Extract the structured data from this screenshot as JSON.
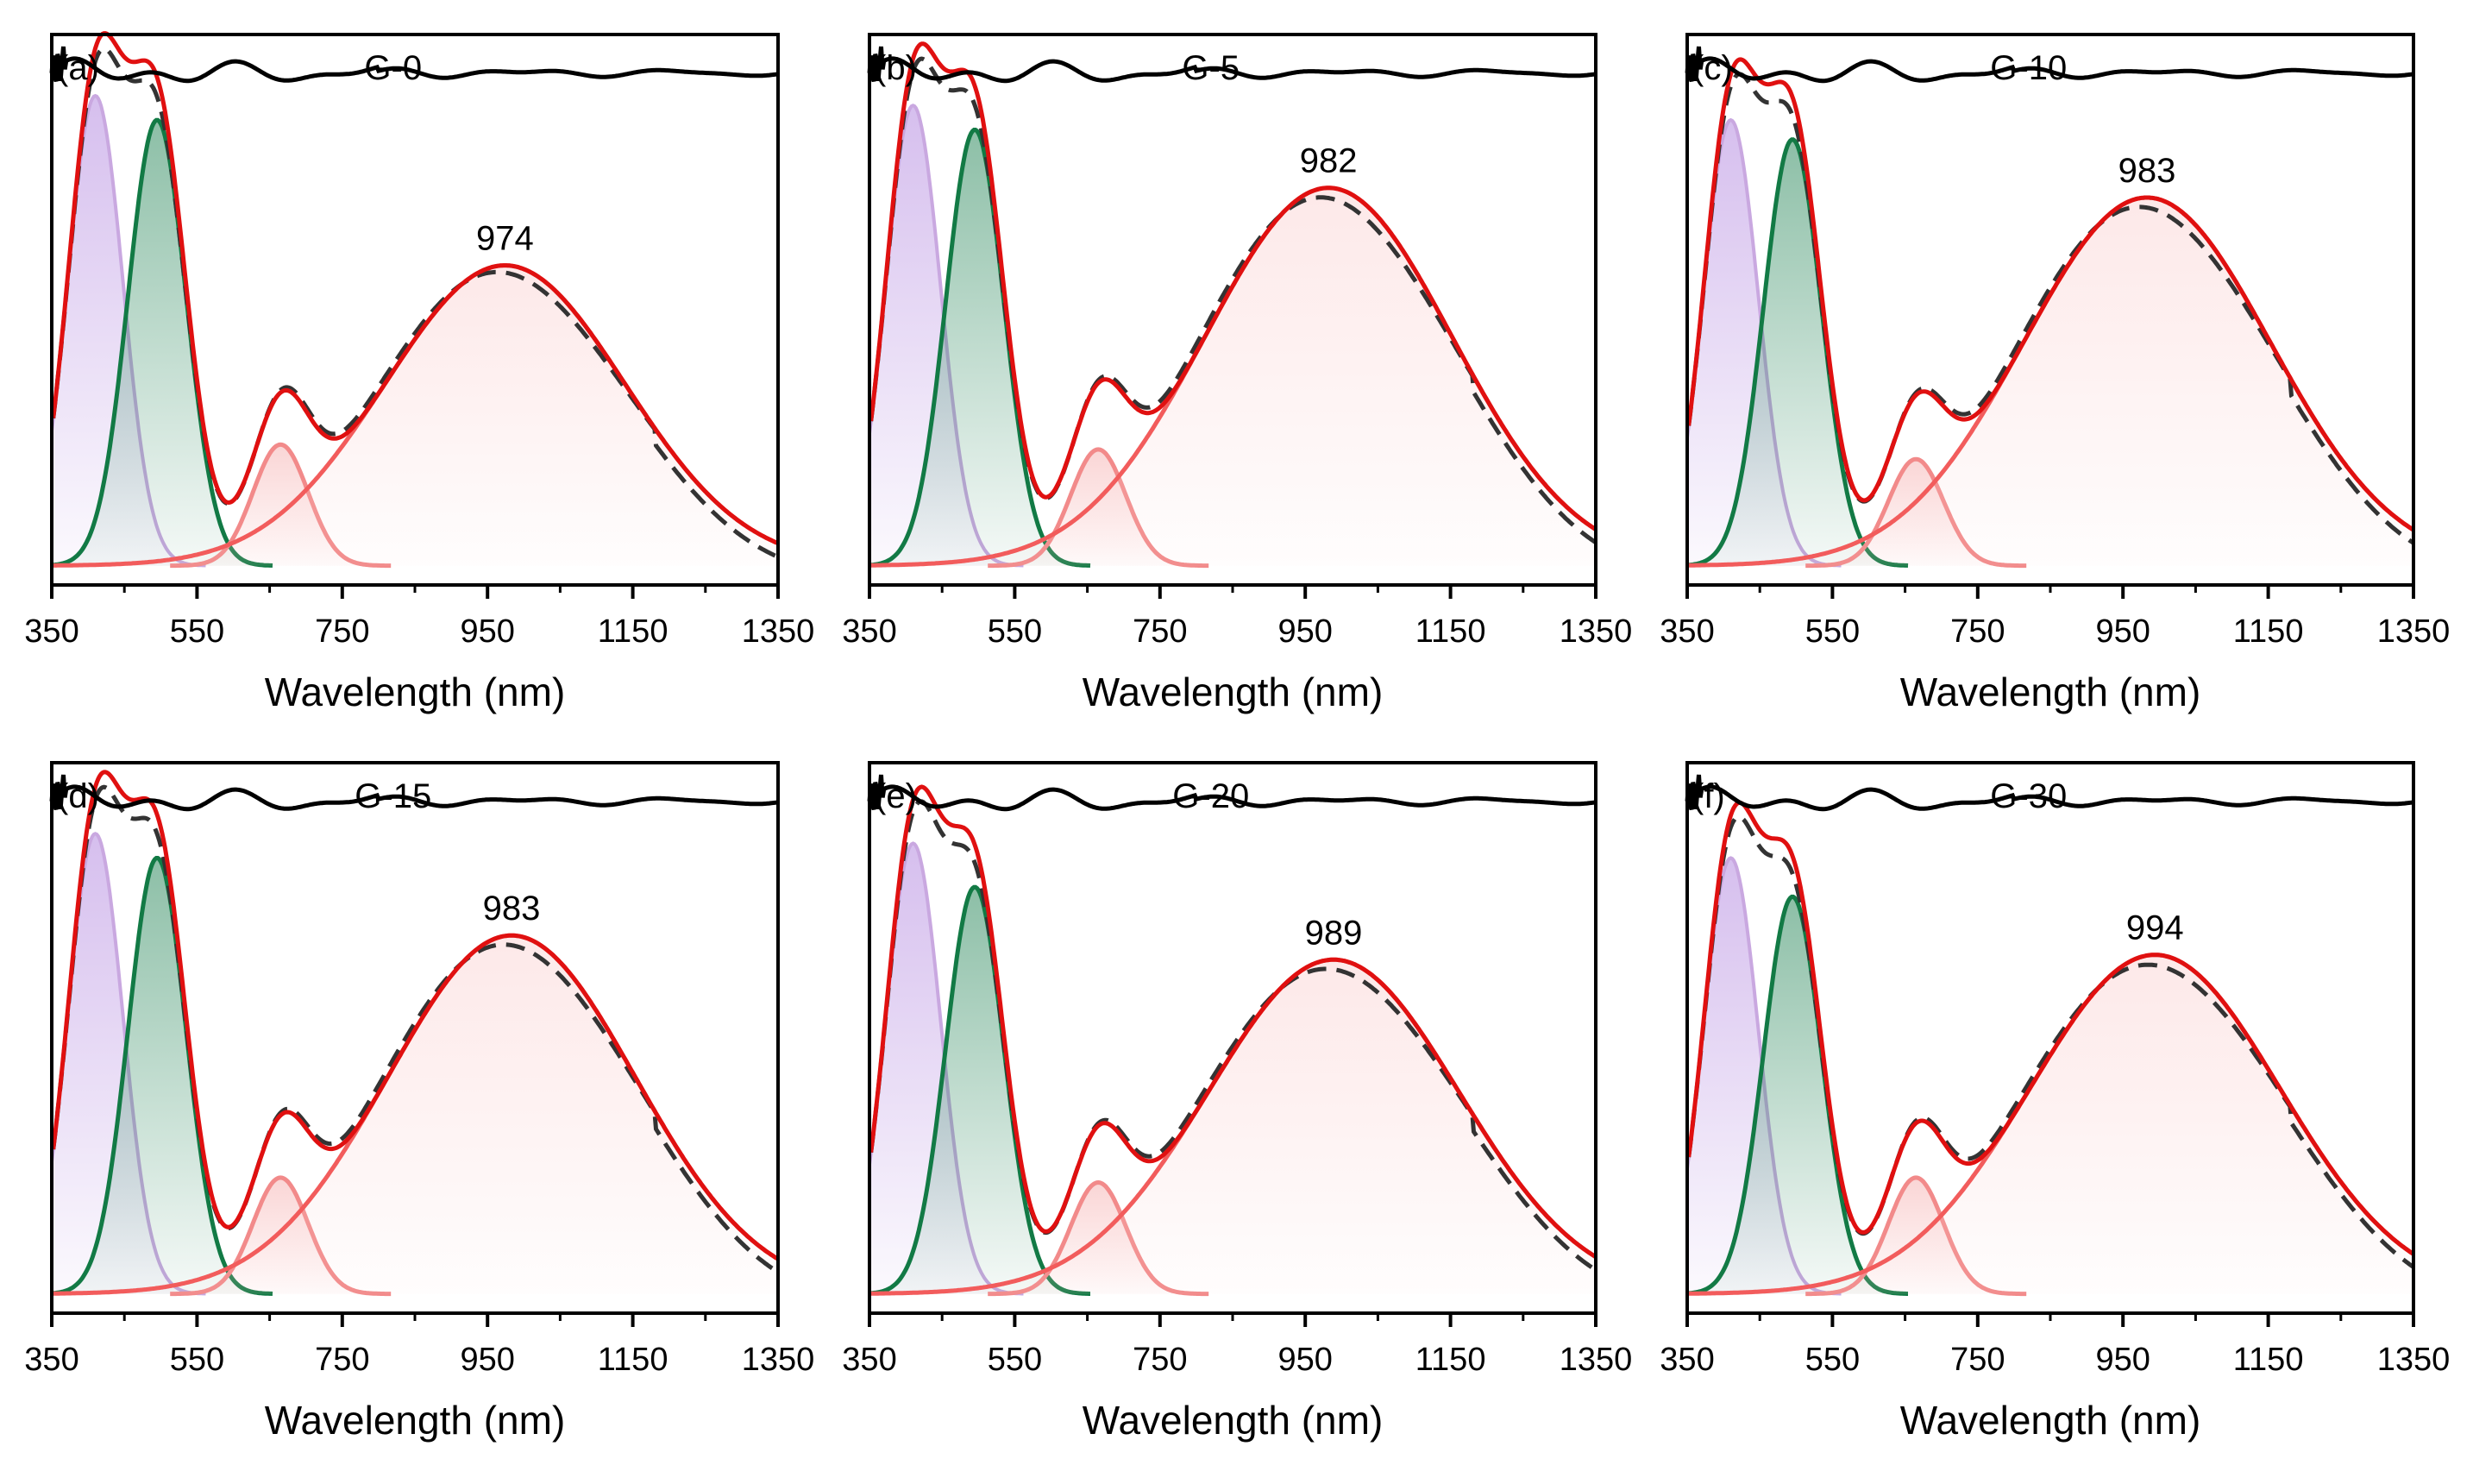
{
  "figure": {
    "description_title": ""
  },
  "colors": {
    "black": "#000000",
    "fit": "#e01010",
    "violet_line": "#c9a8e0",
    "violet_fill": "#b48ae0",
    "green_line": "#127a45",
    "green_fill": "#2e8a5e",
    "pink_line": "#f28a8a",
    "pink_fill": "#f6b3b3",
    "salmon_line": "#f25c5c",
    "salmon_fill": "#fbd6d6",
    "measured": "#333333"
  },
  "chart_data": [
    {
      "type": "line",
      "panel": "(a)",
      "title": "G-0",
      "xlabel": "Wavelength (nm)",
      "xlim": [
        350,
        1350
      ],
      "xticks": [
        "350",
        "550",
        "750",
        "950",
        "1150",
        "1350"
      ],
      "peak_label": "974",
      "offset_curve_level": 0.93,
      "peaks": [
        {
          "name": "violet",
          "center": 410,
          "width": 38,
          "height": 0.97
        },
        {
          "name": "green",
          "center": 495,
          "width": 40,
          "height": 0.92
        },
        {
          "name": "pink",
          "center": 665,
          "width": 38,
          "height": 0.25
        },
        {
          "name": "nir",
          "center": 974,
          "width": 165,
          "height": 0.62
        }
      ]
    },
    {
      "type": "line",
      "panel": "(b)",
      "title": "G-5",
      "xlabel": "Wavelength (nm)",
      "xlim": [
        350,
        1350
      ],
      "xticks": [
        "350",
        "550",
        "750",
        "950",
        "1150",
        "1350"
      ],
      "peak_label": "982",
      "offset_curve_level": 0.93,
      "peaks": [
        {
          "name": "violet",
          "center": 410,
          "width": 38,
          "height": 0.95
        },
        {
          "name": "green",
          "center": 495,
          "width": 40,
          "height": 0.9
        },
        {
          "name": "pink",
          "center": 665,
          "width": 38,
          "height": 0.24
        },
        {
          "name": "nir",
          "center": 982,
          "width": 170,
          "height": 0.78
        }
      ]
    },
    {
      "type": "line",
      "panel": "(c)",
      "title": "G-10",
      "xlabel": "Wavelength (nm)",
      "xlim": [
        350,
        1350
      ],
      "xticks": [
        "350",
        "550",
        "750",
        "950",
        "1150",
        "1350"
      ],
      "peak_label": "983",
      "offset_curve_level": 0.93,
      "peaks": [
        {
          "name": "violet",
          "center": 410,
          "width": 38,
          "height": 0.92
        },
        {
          "name": "green",
          "center": 495,
          "width": 40,
          "height": 0.88
        },
        {
          "name": "pink",
          "center": 665,
          "width": 38,
          "height": 0.22
        },
        {
          "name": "nir",
          "center": 983,
          "width": 170,
          "height": 0.76
        }
      ]
    },
    {
      "type": "line",
      "panel": "(d)",
      "title": "G-15",
      "xlabel": "Wavelength (nm)",
      "xlim": [
        350,
        1350
      ],
      "xticks": [
        "350",
        "550",
        "750",
        "950",
        "1150",
        "1350"
      ],
      "peak_label": "983",
      "offset_curve_level": 0.93,
      "peaks": [
        {
          "name": "violet",
          "center": 410,
          "width": 38,
          "height": 0.95
        },
        {
          "name": "green",
          "center": 495,
          "width": 40,
          "height": 0.9
        },
        {
          "name": "pink",
          "center": 665,
          "width": 38,
          "height": 0.24
        },
        {
          "name": "nir",
          "center": 983,
          "width": 170,
          "height": 0.74
        }
      ]
    },
    {
      "type": "line",
      "panel": "(e)",
      "title": "G-20",
      "xlabel": "Wavelength (nm)",
      "xlim": [
        350,
        1350
      ],
      "xticks": [
        "350",
        "550",
        "750",
        "950",
        "1150",
        "1350"
      ],
      "peak_label": "989",
      "offset_curve_level": 0.93,
      "peaks": [
        {
          "name": "violet",
          "center": 410,
          "width": 38,
          "height": 0.93
        },
        {
          "name": "green",
          "center": 495,
          "width": 40,
          "height": 0.84
        },
        {
          "name": "pink",
          "center": 665,
          "width": 38,
          "height": 0.23
        },
        {
          "name": "nir",
          "center": 989,
          "width": 172,
          "height": 0.69
        }
      ]
    },
    {
      "type": "line",
      "panel": "(f)",
      "title": "G-30",
      "xlabel": "Wavelength (nm)",
      "xlim": [
        350,
        1350
      ],
      "xticks": [
        "350",
        "550",
        "750",
        "950",
        "1150",
        "1350"
      ],
      "peak_label": "994",
      "offset_curve_level": 0.93,
      "peaks": [
        {
          "name": "violet",
          "center": 410,
          "width": 38,
          "height": 0.9
        },
        {
          "name": "green",
          "center": 495,
          "width": 40,
          "height": 0.82
        },
        {
          "name": "pink",
          "center": 665,
          "width": 38,
          "height": 0.24
        },
        {
          "name": "nir",
          "center": 994,
          "width": 172,
          "height": 0.7
        }
      ]
    }
  ]
}
